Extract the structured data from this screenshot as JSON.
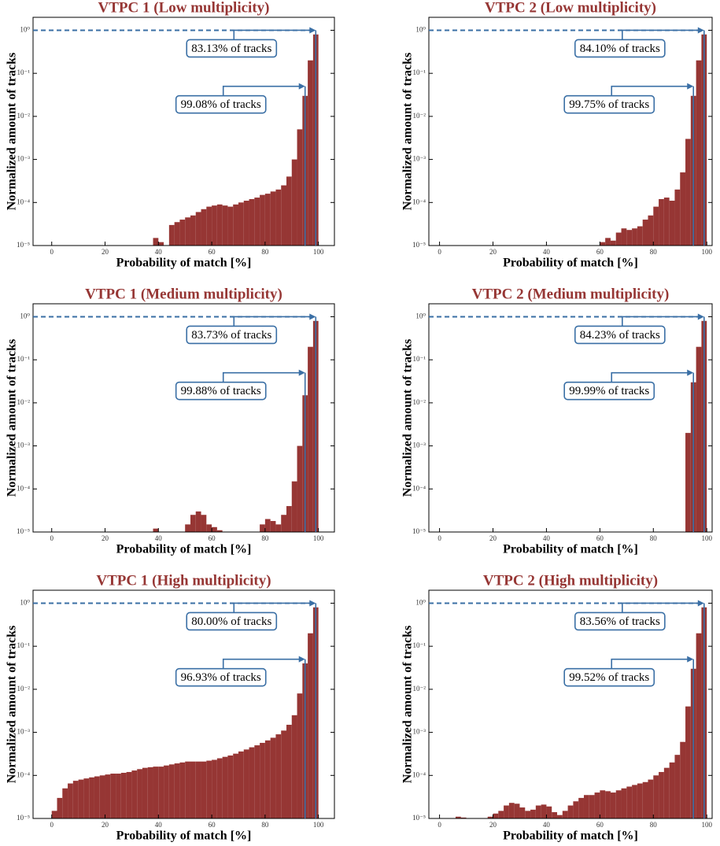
{
  "chart_data": [
    {
      "type": "histogram",
      "title": "VTPC 1 (Low multiplicity)",
      "xlabel": "Probability of match [%]",
      "ylabel": "Normalized amount of tracks",
      "color": "#963634",
      "annotation_color": "#3a6fa5",
      "yscale": "log",
      "bins": [
        0,
        2,
        4,
        6,
        8,
        10,
        12,
        14,
        16,
        18,
        20,
        22,
        24,
        26,
        28,
        30,
        32,
        34,
        36,
        38,
        40,
        42,
        44,
        46,
        48,
        50,
        52,
        54,
        56,
        58,
        60,
        62,
        64,
        66,
        68,
        70,
        72,
        74,
        76,
        78,
        80,
        82,
        84,
        86,
        88,
        90,
        92,
        94,
        96,
        98,
        100
      ],
      "values": [
        0,
        0,
        0,
        0,
        0,
        0,
        0,
        0,
        0,
        0,
        0,
        0,
        0,
        0,
        0,
        0,
        0,
        0,
        0,
        1.5e-05,
        1.2e-05,
        0,
        3e-05,
        3.5e-05,
        4e-05,
        4.5e-05,
        5e-05,
        6e-05,
        7e-05,
        8e-05,
        8.5e-05,
        9e-05,
        8.5e-05,
        8e-05,
        9e-05,
        0.0001,
        0.00011,
        0.00012,
        0.00013,
        0.00015,
        0.00016,
        0.00018,
        0.0002,
        0.00025,
        0.0004,
        0.001,
        0.005,
        0.03,
        0.2,
        0.8
      ],
      "xlim": [
        -7,
        106
      ],
      "xticks": [
        0,
        20,
        40,
        60,
        80,
        100
      ],
      "ylim": [
        1e-05,
        2
      ],
      "yticks": [
        {
          "value": 1e-05,
          "label": "10⁻⁵"
        },
        {
          "value": 0.0001,
          "label": "10⁻⁴"
        },
        {
          "value": 0.001,
          "label": "10⁻³"
        },
        {
          "value": 0.01,
          "label": "10⁻²"
        },
        {
          "value": 0.1,
          "label": "10⁻¹"
        },
        {
          "value": 1,
          "label": "10⁰"
        }
      ],
      "hline": 1,
      "annotations": [
        {
          "text": "83.13% of tracks",
          "x": 99,
          "y": 1
        },
        {
          "text": "99.08% of tracks",
          "x": 95,
          "y": 0.05
        }
      ]
    },
    {
      "type": "histogram",
      "title": "VTPC 2 (Low multiplicity)",
      "xlabel": "Probability of match [%]",
      "ylabel": "Normalized amount of tracks",
      "color": "#963634",
      "annotation_color": "#3a6fa5",
      "yscale": "log",
      "bins": [
        0,
        2,
        4,
        6,
        8,
        10,
        12,
        14,
        16,
        18,
        20,
        22,
        24,
        26,
        28,
        30,
        32,
        34,
        36,
        38,
        40,
        42,
        44,
        46,
        48,
        50,
        52,
        54,
        56,
        58,
        60,
        62,
        64,
        66,
        68,
        70,
        72,
        74,
        76,
        78,
        80,
        82,
        84,
        86,
        88,
        90,
        92,
        94,
        96,
        98,
        100
      ],
      "values": [
        0,
        0,
        0,
        0,
        0,
        0,
        0,
        0,
        0,
        0,
        0,
        0,
        0,
        0,
        0,
        0,
        0,
        0,
        0,
        0,
        0,
        0,
        0,
        0,
        0,
        0,
        0,
        0,
        0,
        0,
        1.2e-05,
        1.5e-05,
        1.3e-05,
        2e-05,
        2.5e-05,
        2.3e-05,
        2.5e-05,
        2.8e-05,
        4e-05,
        5e-05,
        8e-05,
        0.00012,
        0.00013,
        0.00011,
        0.0002,
        0.0005,
        0.003,
        0.03,
        0.2,
        0.8
      ],
      "xlim": [
        -4,
        102
      ],
      "xticks": [
        0,
        20,
        40,
        60,
        80,
        100
      ],
      "ylim": [
        1e-05,
        2
      ],
      "yticks": [
        {
          "value": 1e-05,
          "label": "10⁻⁵"
        },
        {
          "value": 0.0001,
          "label": "10⁻⁴"
        },
        {
          "value": 0.001,
          "label": "10⁻³"
        },
        {
          "value": 0.01,
          "label": "10⁻²"
        },
        {
          "value": 0.1,
          "label": "10⁻¹"
        },
        {
          "value": 1,
          "label": "10⁰"
        }
      ],
      "hline": 1,
      "annotations": [
        {
          "text": "84.10% of tracks",
          "x": 99,
          "y": 1
        },
        {
          "text": "99.75% of tracks",
          "x": 95,
          "y": 0.05
        }
      ]
    },
    {
      "type": "histogram",
      "title": "VTPC 1 (Medium multiplicity)",
      "xlabel": "Probability of match [%]",
      "ylabel": "Normalized amount of tracks",
      "color": "#963634",
      "annotation_color": "#3a6fa5",
      "yscale": "log",
      "bins": [
        0,
        2,
        4,
        6,
        8,
        10,
        12,
        14,
        16,
        18,
        20,
        22,
        24,
        26,
        28,
        30,
        32,
        34,
        36,
        38,
        40,
        42,
        44,
        46,
        48,
        50,
        52,
        54,
        56,
        58,
        60,
        62,
        64,
        66,
        68,
        70,
        72,
        74,
        76,
        78,
        80,
        82,
        84,
        86,
        88,
        90,
        92,
        94,
        96,
        98,
        100
      ],
      "values": [
        0,
        0,
        0,
        0,
        0,
        0,
        0,
        0,
        0,
        0,
        0,
        0,
        0,
        0,
        0,
        0,
        0,
        0,
        0,
        1.2e-05,
        0,
        0,
        0,
        0,
        0,
        1.5e-05,
        2.5e-05,
        3e-05,
        2.5e-05,
        1.5e-05,
        1.3e-05,
        1.1e-05,
        0,
        0,
        0,
        0,
        0,
        0,
        0,
        1.5e-05,
        2e-05,
        1.8e-05,
        1.5e-05,
        2.5e-05,
        4e-05,
        0.00015,
        0.001,
        0.015,
        0.2,
        0.8
      ],
      "xlim": [
        -7,
        106
      ],
      "xticks": [
        0,
        20,
        40,
        60,
        80,
        100
      ],
      "ylim": [
        1e-05,
        2
      ],
      "yticks": [
        {
          "value": 1e-05,
          "label": "10⁻⁵"
        },
        {
          "value": 0.0001,
          "label": "10⁻⁴"
        },
        {
          "value": 0.001,
          "label": "10⁻³"
        },
        {
          "value": 0.01,
          "label": "10⁻²"
        },
        {
          "value": 0.1,
          "label": "10⁻¹"
        },
        {
          "value": 1,
          "label": "10⁰"
        }
      ],
      "hline": 1,
      "annotations": [
        {
          "text": "83.73% of tracks",
          "x": 99,
          "y": 1
        },
        {
          "text": "99.88% of tracks",
          "x": 95,
          "y": 0.05
        }
      ]
    },
    {
      "type": "histogram",
      "title": "VTPC 2 (Medium multiplicity)",
      "xlabel": "Probability of match [%]",
      "ylabel": "Normalized amount of tracks",
      "color": "#963634",
      "annotation_color": "#3a6fa5",
      "yscale": "log",
      "bins": [
        0,
        2,
        4,
        6,
        8,
        10,
        12,
        14,
        16,
        18,
        20,
        22,
        24,
        26,
        28,
        30,
        32,
        34,
        36,
        38,
        40,
        42,
        44,
        46,
        48,
        50,
        52,
        54,
        56,
        58,
        60,
        62,
        64,
        66,
        68,
        70,
        72,
        74,
        76,
        78,
        80,
        82,
        84,
        86,
        88,
        90,
        92,
        94,
        96,
        98,
        100
      ],
      "values": [
        0,
        0,
        0,
        0,
        0,
        0,
        0,
        0,
        0,
        0,
        0,
        0,
        0,
        0,
        0,
        0,
        0,
        0,
        0,
        0,
        0,
        0,
        0,
        0,
        0,
        0,
        0,
        0,
        0,
        0,
        0,
        0,
        0,
        0,
        0,
        0,
        0,
        0,
        0,
        0,
        0,
        0,
        0,
        0,
        0,
        0,
        0.002,
        0.03,
        0.2,
        0.8
      ],
      "xlim": [
        -4,
        102
      ],
      "xticks": [
        0,
        20,
        40,
        60,
        80,
        100
      ],
      "ylim": [
        1e-05,
        2
      ],
      "yticks": [
        {
          "value": 1e-05,
          "label": "10⁻⁵"
        },
        {
          "value": 0.0001,
          "label": "10⁻⁴"
        },
        {
          "value": 0.001,
          "label": "10⁻³"
        },
        {
          "value": 0.01,
          "label": "10⁻²"
        },
        {
          "value": 0.1,
          "label": "10⁻¹"
        },
        {
          "value": 1,
          "label": "10⁰"
        }
      ],
      "hline": 1,
      "annotations": [
        {
          "text": "84.23% of tracks",
          "x": 99,
          "y": 1
        },
        {
          "text": "99.99% of tracks",
          "x": 95,
          "y": 0.05
        }
      ]
    },
    {
      "type": "histogram",
      "title": "VTPC 1 (High multiplicity)",
      "xlabel": "Probability of match [%]",
      "ylabel": "Normalized amount of tracks",
      "color": "#963634",
      "annotation_color": "#3a6fa5",
      "yscale": "log",
      "bins": [
        0,
        2,
        4,
        6,
        8,
        10,
        12,
        14,
        16,
        18,
        20,
        22,
        24,
        26,
        28,
        30,
        32,
        34,
        36,
        38,
        40,
        42,
        44,
        46,
        48,
        50,
        52,
        54,
        56,
        58,
        60,
        62,
        64,
        66,
        68,
        70,
        72,
        74,
        76,
        78,
        80,
        82,
        84,
        86,
        88,
        90,
        92,
        94,
        96,
        98,
        100
      ],
      "values": [
        1.5e-05,
        3e-05,
        5e-05,
        6.5e-05,
        7.5e-05,
        8e-05,
        8.5e-05,
        9e-05,
        9.5e-05,
        0.0001,
        0.000105,
        0.00011,
        0.00011,
        0.000115,
        0.00012,
        0.00013,
        0.00014,
        0.00015,
        0.000155,
        0.00016,
        0.00016,
        0.00017,
        0.00018,
        0.00019,
        0.0002,
        0.00021,
        0.00021,
        0.00021,
        0.00021,
        0.00022,
        0.00023,
        0.00025,
        0.00027,
        0.00029,
        0.00032,
        0.00036,
        0.0004,
        0.00045,
        0.0005,
        0.00057,
        0.00065,
        0.00075,
        0.0009,
        0.0011,
        0.0015,
        0.0025,
        0.008,
        0.04,
        0.2,
        0.8
      ],
      "xlim": [
        -7,
        106
      ],
      "xticks": [
        0,
        20,
        40,
        60,
        80,
        100
      ],
      "ylim": [
        1e-05,
        2
      ],
      "yticks": [
        {
          "value": 1e-05,
          "label": "10⁻⁵"
        },
        {
          "value": 0.0001,
          "label": "10⁻⁴"
        },
        {
          "value": 0.001,
          "label": "10⁻³"
        },
        {
          "value": 0.01,
          "label": "10⁻²"
        },
        {
          "value": 0.1,
          "label": "10⁻¹"
        },
        {
          "value": 1,
          "label": "10⁰"
        }
      ],
      "hline": 1,
      "annotations": [
        {
          "text": "80.00% of tracks",
          "x": 99,
          "y": 1
        },
        {
          "text": "96.93% of tracks",
          "x": 95,
          "y": 0.05
        }
      ]
    },
    {
      "type": "histogram",
      "title": "VTPC 2 (High multiplicity)",
      "xlabel": "Probability of match [%]",
      "ylabel": "Normalized amount of tracks",
      "color": "#963634",
      "annotation_color": "#3a6fa5",
      "yscale": "log",
      "bins": [
        0,
        2,
        4,
        6,
        8,
        10,
        12,
        14,
        16,
        18,
        20,
        22,
        24,
        26,
        28,
        30,
        32,
        34,
        36,
        38,
        40,
        42,
        44,
        46,
        48,
        50,
        52,
        54,
        56,
        58,
        60,
        62,
        64,
        66,
        68,
        70,
        72,
        74,
        76,
        78,
        80,
        82,
        84,
        86,
        88,
        90,
        92,
        94,
        96,
        98,
        100
      ],
      "values": [
        0,
        0,
        0,
        1.1e-05,
        1.05e-05,
        0,
        0,
        0,
        0,
        1.1e-05,
        1.3e-05,
        1.5e-05,
        2e-05,
        2.3e-05,
        2.2e-05,
        1.8e-05,
        1.5e-05,
        1.6e-05,
        2e-05,
        2.1e-05,
        1.9e-05,
        1.4e-05,
        1.2e-05,
        1.5e-05,
        2e-05,
        2.5e-05,
        3e-05,
        3.5e-05,
        3.5e-05,
        4e-05,
        4.5e-05,
        4.3e-05,
        4e-05,
        4.5e-05,
        5e-05,
        5.5e-05,
        6e-05,
        6.5e-05,
        7e-05,
        8e-05,
        0.0001,
        0.00012,
        0.00015,
        0.0002,
        0.0003,
        0.0006,
        0.004,
        0.03,
        0.2,
        0.8
      ],
      "xlim": [
        -4,
        102
      ],
      "xticks": [
        0,
        20,
        40,
        60,
        80,
        100
      ],
      "ylim": [
        1e-05,
        2
      ],
      "yticks": [
        {
          "value": 1e-05,
          "label": "10⁻⁵"
        },
        {
          "value": 0.0001,
          "label": "10⁻⁴"
        },
        {
          "value": 0.001,
          "label": "10⁻³"
        },
        {
          "value": 0.01,
          "label": "10⁻²"
        },
        {
          "value": 0.1,
          "label": "10⁻¹"
        },
        {
          "value": 1,
          "label": "10⁰"
        }
      ],
      "hline": 1,
      "annotations": [
        {
          "text": "83.56% of tracks",
          "x": 99,
          "y": 1
        },
        {
          "text": "99.52% of tracks",
          "x": 95,
          "y": 0.05
        }
      ]
    }
  ]
}
